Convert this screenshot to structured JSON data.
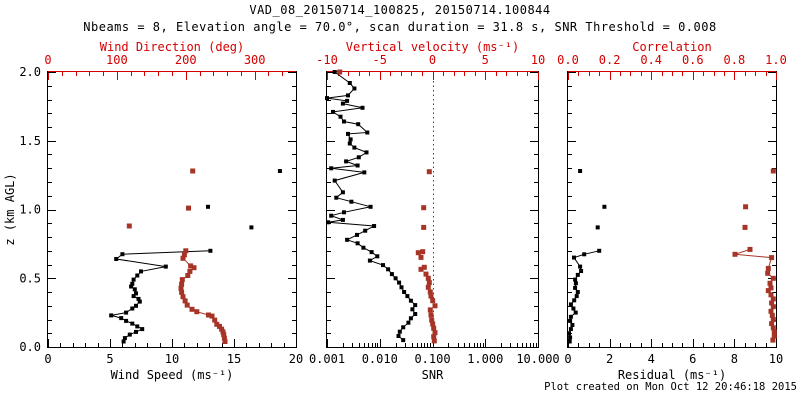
{
  "title": "VAD_08_20150714_100825, 20150714.100844",
  "subtitle": "Nbeams = 8, Elevation angle = 70.0°, scan duration = 31.8 s, SNR Threshold = 0.008",
  "footer": "Plot created on Mon Oct 12 20:46:18 2015",
  "colors": {
    "black": "#000000",
    "axis_red": "#d40000",
    "marker_red": "#a73527"
  },
  "y_axis": {
    "label": "z (km AGL)",
    "range": [
      0,
      2
    ],
    "ticks": [
      0,
      0.5,
      1,
      1.5,
      2
    ],
    "tick_labels": [
      "0.0",
      "0.5",
      "1.0",
      "1.5",
      "2.0"
    ],
    "minor_step": 0.1
  },
  "chart_data": [
    {
      "id": "wind",
      "type": "scatter",
      "x_bottom": {
        "label": "Wind Speed (ms⁻¹)",
        "range": [
          0,
          20
        ],
        "ticks": [
          0,
          5,
          10,
          15,
          20
        ],
        "tick_labels": [
          "0",
          "5",
          "10",
          "15",
          "20"
        ],
        "minor_step": 1,
        "color": "black"
      },
      "x_top": {
        "label": "Wind Direction (deg)",
        "range": [
          0,
          360
        ],
        "ticks": [
          0,
          100,
          200,
          300
        ],
        "tick_labels": [
          "0",
          "100",
          "200",
          "300"
        ],
        "minor_step": 20,
        "color": "axis_red"
      },
      "show_y_labels": true,
      "series": [
        {
          "name": "wind-speed-profile",
          "x_axis": "bottom",
          "color": "black",
          "line": true,
          "points": [
            [
              6.1,
              0.04
            ],
            [
              6.2,
              0.065
            ],
            [
              6.6,
              0.09
            ],
            [
              7.1,
              0.11
            ],
            [
              7.6,
              0.13
            ],
            [
              7.2,
              0.15
            ],
            [
              6.8,
              0.17
            ],
            [
              6.3,
              0.19
            ],
            [
              5.9,
              0.21
            ],
            [
              5.1,
              0.23
            ],
            [
              6.3,
              0.25
            ],
            [
              6.8,
              0.28
            ],
            [
              7.1,
              0.3
            ],
            [
              7.4,
              0.33
            ],
            [
              7.3,
              0.35
            ],
            [
              6.9,
              0.37
            ],
            [
              7.1,
              0.39
            ],
            [
              7.0,
              0.42
            ],
            [
              6.7,
              0.44
            ],
            [
              6.8,
              0.46
            ],
            [
              6.9,
              0.49
            ],
            [
              7.2,
              0.52
            ],
            [
              7.5,
              0.55
            ],
            [
              9.5,
              0.585
            ],
            [
              5.5,
              0.64
            ],
            [
              6.0,
              0.675
            ],
            [
              13.1,
              0.7
            ]
          ]
        },
        {
          "name": "wind-speed-upper",
          "x_axis": "bottom",
          "color": "black",
          "line": false,
          "points": [
            [
              16.4,
              0.87
            ],
            [
              12.9,
              1.02
            ],
            [
              18.7,
              1.28
            ]
          ]
        },
        {
          "name": "wind-direction-profile",
          "x_axis": "top",
          "color": "marker_red",
          "line": true,
          "points": [
            [
              257,
              0.04
            ],
            [
              256,
              0.065
            ],
            [
              255,
              0.09
            ],
            [
              254,
              0.11
            ],
            [
              252,
              0.13
            ],
            [
              249,
              0.15
            ],
            [
              245,
              0.165
            ],
            [
              242,
              0.196
            ],
            [
              238,
              0.225
            ],
            [
              233,
              0.233
            ],
            [
              216,
              0.257
            ],
            [
              209,
              0.274
            ],
            [
              202,
              0.305
            ],
            [
              199,
              0.335
            ],
            [
              196,
              0.366
            ],
            [
              194,
              0.398
            ],
            [
              193,
              0.427
            ],
            [
              194,
              0.456
            ],
            [
              195,
              0.49
            ],
            [
              203,
              0.52
            ],
            [
              206,
              0.55
            ],
            [
              212,
              0.577
            ],
            [
              207,
              0.59
            ],
            [
              196,
              0.645
            ],
            [
              198,
              0.67
            ],
            [
              200,
              0.7
            ]
          ]
        },
        {
          "name": "wind-direction-upper",
          "x_axis": "top",
          "color": "marker_red",
          "line": false,
          "points": [
            [
              118,
              0.88
            ],
            [
              204,
              1.01
            ],
            [
              210,
              1.28
            ]
          ]
        }
      ]
    },
    {
      "id": "snr",
      "type": "scatter",
      "x_bottom": {
        "label": "SNR",
        "range": [
          0.001,
          10
        ],
        "scale": "log",
        "ticks": [
          0.001,
          0.01,
          0.1,
          1,
          10
        ],
        "tick_labels": [
          "0.001",
          "0.010",
          "0.100",
          "1.000",
          "10.000"
        ],
        "color": "black"
      },
      "x_top": {
        "label": "Vertical velocity (ms⁻¹)",
        "range": [
          -10,
          10
        ],
        "ticks": [
          -10,
          -5,
          0,
          5,
          10
        ],
        "tick_labels": [
          "-10",
          "-5",
          "0",
          "5",
          "10"
        ],
        "minor_step": 1,
        "color": "axis_red"
      },
      "refline": {
        "x_axis": "top",
        "value": 0,
        "color": "axis_red",
        "dash": "1.5 3"
      },
      "series": [
        {
          "name": "snr-profile",
          "x_axis": "bottom",
          "color": "black",
          "line": true,
          "points": [
            [
              0.0278,
              0.05
            ],
            [
              0.0227,
              0.08
            ],
            [
              0.024,
              0.111
            ],
            [
              0.0278,
              0.143
            ],
            [
              0.035,
              0.177
            ],
            [
              0.039,
              0.209
            ],
            [
              0.047,
              0.24
            ],
            [
              0.0415,
              0.274
            ],
            [
              0.047,
              0.305
            ],
            [
              0.039,
              0.337
            ],
            [
              0.0334,
              0.37
            ],
            [
              0.0289,
              0.4
            ],
            [
              0.0258,
              0.434
            ],
            [
              0.0233,
              0.468
            ],
            [
              0.02,
              0.5
            ],
            [
              0.017,
              0.53
            ],
            [
              0.0144,
              0.565
            ],
            [
              0.0115,
              0.596
            ],
            [
              0.0065,
              0.628
            ],
            [
              0.009,
              0.66
            ],
            [
              0.007,
              0.69
            ],
            [
              0.0049,
              0.722
            ],
            [
              0.0038,
              0.754
            ],
            [
              0.0024,
              0.78
            ],
            [
              0.0037,
              0.815
            ],
            [
              0.0053,
              0.846
            ],
            [
              0.0078,
              0.88
            ],
            [
              0.00105,
              0.907
            ],
            [
              0.002,
              0.924
            ],
            [
              0.0012,
              0.955
            ],
            [
              0.0021,
              0.98
            ],
            [
              0.0067,
              1.02
            ],
            [
              0.0029,
              1.057
            ],
            [
              0.0015,
              1.086
            ],
            [
              0.002,
              1.125
            ],
            [
              0.0014,
              1.21
            ],
            [
              0.0051,
              1.27
            ],
            [
              0.0012,
              1.3
            ],
            [
              0.0038,
              1.32
            ],
            [
              0.0023,
              1.35
            ],
            [
              0.004,
              1.38
            ],
            [
              0.0056,
              1.415
            ],
            [
              0.0033,
              1.45
            ],
            [
              0.0027,
              1.48
            ],
            [
              0.0028,
              1.51
            ],
            [
              0.0025,
              1.55
            ],
            [
              0.0058,
              1.56
            ],
            [
              0.0039,
              1.62
            ],
            [
              0.0021,
              1.64
            ],
            [
              0.0018,
              1.675
            ],
            [
              0.0013,
              1.71
            ],
            [
              0.0047,
              1.74
            ],
            [
              0.002,
              1.77
            ],
            [
              0.0024,
              1.79
            ],
            [
              0.001,
              1.81
            ],
            [
              0.0025,
              1.83
            ],
            [
              0.0033,
              1.88
            ],
            [
              0.0027,
              1.92
            ],
            [
              0.0014,
              2.0
            ]
          ]
        },
        {
          "name": "vertical-velocity-points",
          "x_axis": "top",
          "color": "marker_red",
          "line": false,
          "points": [
            [
              0.17,
              0.044
            ],
            [
              0.11,
              0.075
            ],
            [
              0.24,
              0.104
            ],
            [
              0.11,
              0.136
            ],
            [
              0.02,
              0.167
            ],
            [
              -0.08,
              0.196
            ],
            [
              -0.14,
              0.233
            ],
            [
              -0.21,
              0.27
            ],
            [
              0.24,
              0.3
            ],
            [
              0.02,
              0.337
            ],
            [
              -0.14,
              0.37
            ],
            [
              -0.21,
              0.4
            ],
            [
              -0.4,
              0.434
            ],
            [
              -0.3,
              0.468
            ],
            [
              -0.4,
              0.5
            ],
            [
              -0.62,
              0.53
            ],
            [
              -1.09,
              0.565
            ],
            [
              -0.78,
              0.58
            ],
            [
              -1.09,
              0.652
            ],
            [
              -1.35,
              0.686
            ],
            [
              -0.93,
              0.693
            ],
            [
              -0.83,
              0.87
            ],
            [
              -0.83,
              1.013
            ],
            [
              -0.3,
              1.275
            ],
            [
              -8.8,
              2.0
            ]
          ]
        }
      ]
    },
    {
      "id": "residual",
      "type": "scatter",
      "x_bottom": {
        "label": "Residual (ms⁻¹)",
        "range": [
          0,
          10
        ],
        "ticks": [
          0,
          2,
          4,
          6,
          8,
          10
        ],
        "tick_labels": [
          "0",
          "2",
          "4",
          "6",
          "8",
          "10"
        ],
        "minor_step": 0.5,
        "color": "black"
      },
      "x_top": {
        "label": "Correlation",
        "range": [
          0,
          1
        ],
        "ticks": [
          0,
          0.2,
          0.4,
          0.6,
          0.8,
          1
        ],
        "tick_labels": [
          "0.0",
          "0.2",
          "0.4",
          "0.6",
          "0.8",
          "1.0"
        ],
        "minor_step": 0.05,
        "color": "axis_red"
      },
      "series": [
        {
          "name": "residual-profile",
          "x_axis": "bottom",
          "color": "black",
          "line": true,
          "points": [
            [
              0.08,
              0.04
            ],
            [
              0.1,
              0.07
            ],
            [
              0.05,
              0.1
            ],
            [
              0.14,
              0.13
            ],
            [
              0.21,
              0.16
            ],
            [
              0.1,
              0.19
            ],
            [
              0.14,
              0.22
            ],
            [
              0.37,
              0.25
            ],
            [
              0.26,
              0.28
            ],
            [
              0.14,
              0.31
            ],
            [
              0.3,
              0.34
            ],
            [
              0.42,
              0.37
            ],
            [
              0.47,
              0.4
            ],
            [
              0.34,
              0.43
            ],
            [
              0.38,
              0.463
            ],
            [
              0.34,
              0.49
            ],
            [
              0.47,
              0.524
            ],
            [
              0.63,
              0.553
            ],
            [
              0.58,
              0.585
            ],
            [
              0.29,
              0.65
            ],
            [
              0.78,
              0.674
            ],
            [
              1.5,
              0.7
            ]
          ]
        },
        {
          "name": "residual-upper",
          "x_axis": "bottom",
          "color": "black",
          "line": false,
          "points": [
            [
              1.43,
              0.87
            ],
            [
              1.75,
              1.02
            ],
            [
              0.58,
              1.28
            ]
          ]
        },
        {
          "name": "correlation-profile",
          "x_axis": "top",
          "color": "marker_red",
          "line": true,
          "points": [
            [
              0.985,
              0.05
            ],
            [
              0.992,
              0.08
            ],
            [
              0.992,
              0.11
            ],
            [
              0.987,
              0.14
            ],
            [
              0.979,
              0.17
            ],
            [
              0.987,
              0.2
            ],
            [
              0.982,
              0.23
            ],
            [
              0.976,
              0.26
            ],
            [
              0.987,
              0.293
            ],
            [
              0.979,
              0.32
            ],
            [
              0.987,
              0.35
            ],
            [
              0.976,
              0.38
            ],
            [
              0.963,
              0.41
            ],
            [
              0.976,
              0.43
            ],
            [
              0.971,
              0.463
            ],
            [
              0.987,
              0.5
            ],
            [
              0.96,
              0.536
            ],
            [
              0.963,
              0.572
            ],
            [
              0.979,
              0.65
            ],
            [
              0.803,
              0.674
            ],
            [
              0.875,
              0.71
            ]
          ]
        },
        {
          "name": "correlation-upper",
          "x_axis": "top",
          "color": "marker_red",
          "line": false,
          "points": [
            [
              0.851,
              0.87
            ],
            [
              0.854,
              1.02
            ],
            [
              0.987,
              1.28
            ]
          ]
        }
      ]
    }
  ]
}
